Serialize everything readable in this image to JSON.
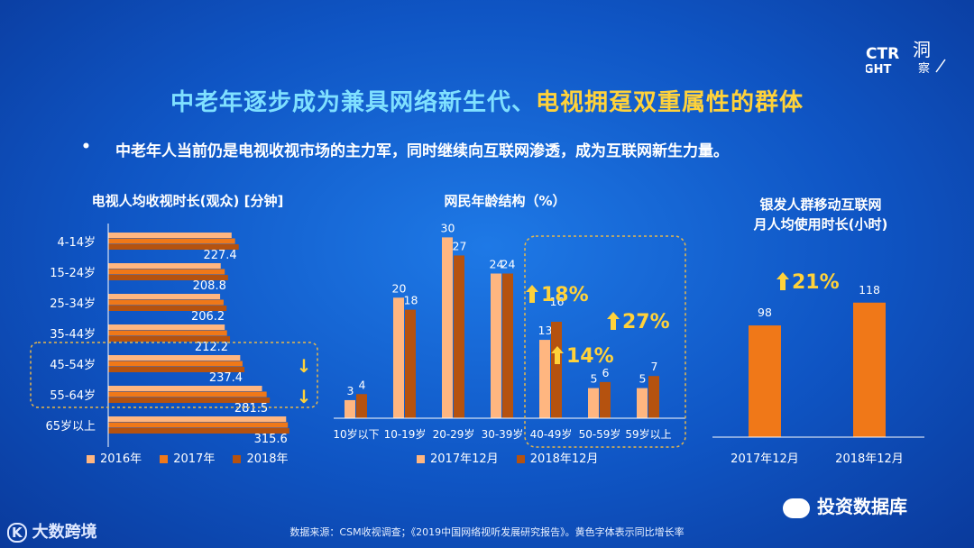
{
  "header": {
    "title_part1": "中老年逐步成为兼具网络新生代、",
    "title_part2": "电视拥趸双重属性的群体",
    "bullet_mark": "•",
    "bullet_text": "中老年人当前仍是电视收视市场的主力军，同时继续向互联网渗透，成为互联网新生力量。"
  },
  "brand": {
    "ctr": "CTR",
    "insight": "INSIGHT",
    "dong": "洞",
    "cha": "察"
  },
  "colors": {
    "light": "#ffb680",
    "mid": "#f07818",
    "dark": "#b5520f",
    "accent_yellow": "#ffd23a",
    "dashed": "#e8b84a"
  },
  "chart_data": [
    {
      "type": "bar",
      "orientation": "horizontal",
      "title": "电视人均收视时长(观众) [分钟]",
      "categories": [
        "4-14岁",
        "15-24岁",
        "25-34岁",
        "35-44岁",
        "45-54岁",
        "55-64岁",
        "65岁以上"
      ],
      "series": [
        {
          "name": "2016年",
          "values": [
            215,
            196,
            195,
            203,
            230,
            268,
            310
          ]
        },
        {
          "name": "2017年",
          "values": [
            221,
            203,
            201,
            207,
            234,
            276,
            313
          ]
        },
        {
          "name": "2018年",
          "values": [
            227.4,
            208.8,
            206.2,
            212.2,
            237.4,
            281.5,
            315.6
          ]
        }
      ],
      "value_labels": [
        "227.4",
        "208.8",
        "206.2",
        "212.2",
        "237.4",
        "281.5",
        "315.6"
      ],
      "down_arrows": [
        "↓",
        "↓"
      ],
      "xlim": [
        0,
        330
      ],
      "highlight": [
        "45-54岁",
        "55-64岁"
      ]
    },
    {
      "type": "bar",
      "title": "网民年龄结构（%）",
      "categories": [
        "10岁以下",
        "10-19岁",
        "20-29岁",
        "30-39岁",
        "40-49岁",
        "50-59岁",
        "59岁以上"
      ],
      "series": [
        {
          "name": "2017年12月",
          "values": [
            3,
            20,
            30,
            24,
            13,
            5,
            5
          ]
        },
        {
          "name": "2018年12月",
          "values": [
            4,
            18,
            27,
            24,
            16,
            6,
            7
          ]
        }
      ],
      "ylim": [
        0,
        32
      ],
      "annotations": [
        {
          "text": "18%",
          "category": "40-49岁"
        },
        {
          "text": "14%",
          "category": "50-59岁"
        },
        {
          "text": "27%",
          "category": "59岁以上"
        }
      ]
    },
    {
      "type": "bar",
      "title_line1": "银发人群移动互联网",
      "title_line2": "月人均使用时长(小时)",
      "categories": [
        "2017年12月",
        "2018年12月"
      ],
      "values": [
        98,
        118
      ],
      "ylim": [
        0,
        170
      ],
      "annotation": "21%"
    }
  ],
  "source": "数据来源：CSM收视调查；《2019中国网络视听发展研究报告》。黄色字体表示同比增长率",
  "footer_left": "大数跨境",
  "footer_right": "投资数据库"
}
